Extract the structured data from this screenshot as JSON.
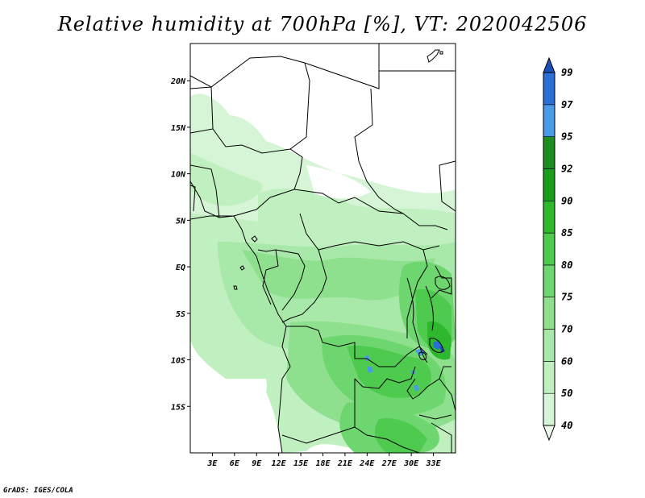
{
  "title": "Relative humidity at 700hPa [%], VT: 2020042506",
  "credit": "GrADS: IGES/COLA",
  "map": {
    "lon_range": [
      0,
      36
    ],
    "lat_range": [
      -20,
      24
    ],
    "lat_ticks": [
      {
        "value": 20,
        "label": "20N"
      },
      {
        "value": 15,
        "label": "15N"
      },
      {
        "value": 10,
        "label": "10N"
      },
      {
        "value": 5,
        "label": "5N"
      },
      {
        "value": 0,
        "label": "EQ"
      },
      {
        "value": -5,
        "label": "5S"
      },
      {
        "value": -10,
        "label": "10S"
      },
      {
        "value": -15,
        "label": "15S"
      }
    ],
    "lon_ticks": [
      {
        "value": 3,
        "label": "3E"
      },
      {
        "value": 6,
        "label": "6E"
      },
      {
        "value": 9,
        "label": "9E"
      },
      {
        "value": 12,
        "label": "12E"
      },
      {
        "value": 15,
        "label": "15E"
      },
      {
        "value": 18,
        "label": "18E"
      },
      {
        "value": 21,
        "label": "21E"
      },
      {
        "value": 24,
        "label": "24E"
      },
      {
        "value": 27,
        "label": "27E"
      },
      {
        "value": 30,
        "label": "30E"
      },
      {
        "value": 33,
        "label": "33E"
      }
    ]
  },
  "colorbar": {
    "levels": [
      "40",
      "50",
      "60",
      "70",
      "75",
      "80",
      "85",
      "90",
      "92",
      "95",
      "97",
      "99"
    ],
    "colors": [
      "#f0fcf0",
      "#d6f5d6",
      "#c0efc0",
      "#a8e8a8",
      "#8ee08e",
      "#6ed66e",
      "#4ecb4e",
      "#2eb82e",
      "#1a9e1a",
      "#1e8c1e",
      "#4a9ae8",
      "#2a6fd6",
      "#1c4fb8"
    ]
  }
}
